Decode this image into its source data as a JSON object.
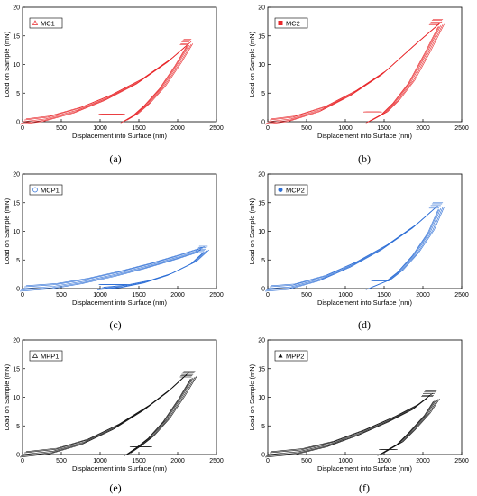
{
  "chart_data": [
    {
      "type": "line",
      "caption": "(a)",
      "xlabel": "Displacement into Surface (nm)",
      "ylabel": "Load on Sample (mN)",
      "xlim": [
        0,
        2500
      ],
      "ylim": [
        0,
        20
      ],
      "xticks": [
        0,
        500,
        1000,
        1500,
        2000,
        2500
      ],
      "yticks": [
        0,
        5,
        10,
        15,
        20
      ],
      "grid": false,
      "legend_position": "top-left",
      "color": "#e8272a",
      "marker": "triangle-open",
      "series": [
        {
          "name": "MC1",
          "loading": [
            [
              0,
              0
            ],
            [
              300,
              0.5
            ],
            [
              700,
              2.0
            ],
            [
              1100,
              4.2
            ],
            [
              1500,
              7.0
            ],
            [
              1900,
              10.8
            ],
            [
              2130,
              13.5
            ]
          ],
          "hold": [
            [
              2050,
              13.9
            ],
            [
              2150,
              13.9
            ]
          ],
          "unloading": [
            [
              2150,
              13.4
            ],
            [
              2000,
              10.0
            ],
            [
              1800,
              6.0
            ],
            [
              1600,
              3.0
            ],
            [
              1450,
              1.2
            ],
            [
              1300,
              0.0
            ]
          ],
          "hold_low": [
            [
              1000,
              1.3
            ],
            [
              1300,
              1.3
            ]
          ]
        }
      ]
    },
    {
      "type": "line",
      "caption": "(b)",
      "xlabel": "Displacement into Surface (nm)",
      "ylabel": "Load on Sample (mN)",
      "xlim": [
        0,
        2500
      ],
      "ylim": [
        0,
        20
      ],
      "xticks": [
        0,
        500,
        1000,
        1500,
        2000,
        2500
      ],
      "yticks": [
        0,
        5,
        10,
        15,
        20
      ],
      "grid": false,
      "legend_position": "top-left",
      "color": "#e8272a",
      "marker": "square-filled",
      "series": [
        {
          "name": "MC2",
          "loading": [
            [
              0,
              0
            ],
            [
              300,
              0.5
            ],
            [
              700,
              2.2
            ],
            [
              1100,
              5.0
            ],
            [
              1500,
              8.6
            ],
            [
              1900,
              13.5
            ],
            [
              2200,
              17.0
            ]
          ],
          "hold": [
            [
              2100,
              17.4
            ],
            [
              2230,
              17.4
            ]
          ],
          "unloading": [
            [
              2230,
              16.8
            ],
            [
              2050,
              12.0
            ],
            [
              1850,
              7.0
            ],
            [
              1650,
              3.5
            ],
            [
              1500,
              1.5
            ],
            [
              1300,
              0.0
            ]
          ],
          "hold_low": [
            [
              1250,
              1.7
            ],
            [
              1450,
              1.7
            ]
          ]
        }
      ]
    },
    {
      "type": "line",
      "caption": "(c)",
      "xlabel": "Displacement into Surface (nm)",
      "ylabel": "Load on Sample (mN)",
      "xlim": [
        0,
        2500
      ],
      "ylim": [
        0,
        20
      ],
      "xticks": [
        0,
        500,
        1000,
        1500,
        2000,
        2500
      ],
      "yticks": [
        0,
        5,
        10,
        15,
        20
      ],
      "grid": false,
      "legend_position": "top-left",
      "color": "#2e6fd6",
      "marker": "circle-open",
      "series": [
        {
          "name": "MCP1",
          "loading": [
            [
              0,
              0
            ],
            [
              400,
              0.4
            ],
            [
              800,
              1.3
            ],
            [
              1200,
              2.5
            ],
            [
              1600,
              3.9
            ],
            [
              2000,
              5.5
            ],
            [
              2300,
              6.8
            ]
          ],
          "hold": [
            [
              2250,
              6.9
            ],
            [
              2360,
              6.9
            ]
          ],
          "unloading": [
            [
              2360,
              6.5
            ],
            [
              2200,
              4.5
            ],
            [
              1900,
              2.5
            ],
            [
              1600,
              1.2
            ],
            [
              1300,
              0.4
            ],
            [
              1000,
              0.0
            ]
          ],
          "hold_low": [
            [
              1000,
              0.7
            ],
            [
              1350,
              0.7
            ]
          ]
        }
      ]
    },
    {
      "type": "line",
      "caption": "(d)",
      "xlabel": "Displacement into Surface (nm)",
      "ylabel": "Load on Sample (mN)",
      "xlim": [
        0,
        2500
      ],
      "ylim": [
        0,
        20
      ],
      "xticks": [
        0,
        500,
        1000,
        1500,
        2000,
        2500
      ],
      "yticks": [
        0,
        5,
        10,
        15,
        20
      ],
      "grid": false,
      "legend_position": "top-left",
      "color": "#2e6fd6",
      "marker": "circle-filled",
      "series": [
        {
          "name": "MCP2",
          "loading": [
            [
              0,
              0
            ],
            [
              300,
              0.3
            ],
            [
              700,
              1.8
            ],
            [
              1100,
              4.2
            ],
            [
              1500,
              7.2
            ],
            [
              1900,
              11.0
            ],
            [
              2150,
              14.0
            ]
          ],
          "hold": [
            [
              2100,
              14.5
            ],
            [
              2230,
              14.5
            ]
          ],
          "unloading": [
            [
              2230,
              14.0
            ],
            [
              2100,
              10.0
            ],
            [
              1900,
              6.0
            ],
            [
              1700,
              3.0
            ],
            [
              1550,
              1.4
            ],
            [
              1300,
              0.0
            ]
          ],
          "hold_low": [
            [
              1350,
              1.3
            ],
            [
              1550,
              1.3
            ]
          ]
        }
      ]
    },
    {
      "type": "line",
      "caption": "(e)",
      "xlabel": "Displacement into Surface (nm)",
      "ylabel": "Load on Sample (mN)",
      "xlim": [
        0,
        2500
      ],
      "ylim": [
        0,
        20
      ],
      "xticks": [
        0,
        500,
        1000,
        1500,
        2000,
        2500
      ],
      "yticks": [
        0,
        5,
        10,
        15,
        20
      ],
      "grid": false,
      "legend_position": "top-left",
      "color": "#111111",
      "marker": "triangle-open",
      "series": [
        {
          "name": "MPP1",
          "loading": [
            [
              0,
              0
            ],
            [
              400,
              0.6
            ],
            [
              800,
              2.2
            ],
            [
              1200,
              4.8
            ],
            [
              1600,
              8.2
            ],
            [
              1900,
              11.3
            ],
            [
              2100,
              13.8
            ]
          ],
          "hold": [
            [
              2050,
              14.0
            ],
            [
              2200,
              14.0
            ]
          ],
          "unloading": [
            [
              2200,
              13.4
            ],
            [
              2050,
              10.0
            ],
            [
              1850,
              6.0
            ],
            [
              1650,
              3.0
            ],
            [
              1500,
              1.4
            ],
            [
              1350,
              0.0
            ]
          ],
          "hold_low": [
            [
              1400,
              1.3
            ],
            [
              1650,
              1.3
            ]
          ]
        }
      ]
    },
    {
      "type": "line",
      "caption": "(f)",
      "xlabel": "Displacement into Surface (nm)",
      "ylabel": "Load on Sample (mN)",
      "xlim": [
        0,
        2500
      ],
      "ylim": [
        0,
        20
      ],
      "xticks": [
        0,
        500,
        1000,
        1500,
        2000,
        2500
      ],
      "yticks": [
        0,
        5,
        10,
        15,
        20
      ],
      "grid": false,
      "legend_position": "top-left",
      "color": "#111111",
      "marker": "triangle-filled",
      "series": [
        {
          "name": "MPP2",
          "loading": [
            [
              0,
              0
            ],
            [
              400,
              0.5
            ],
            [
              800,
              1.8
            ],
            [
              1200,
              3.8
            ],
            [
              1600,
              6.2
            ],
            [
              1900,
              8.3
            ],
            [
              2080,
              10.2
            ]
          ],
          "hold": [
            [
              2000,
              10.6
            ],
            [
              2150,
              10.6
            ]
          ],
          "unloading": [
            [
              2170,
              9.5
            ],
            [
              2050,
              7.0
            ],
            [
              1850,
              4.0
            ],
            [
              1700,
              2.0
            ],
            [
              1550,
              0.8
            ],
            [
              1450,
              0.0
            ]
          ],
          "hold_low": [
            [
              1450,
              0.9
            ],
            [
              1650,
              0.9
            ]
          ]
        }
      ]
    }
  ]
}
